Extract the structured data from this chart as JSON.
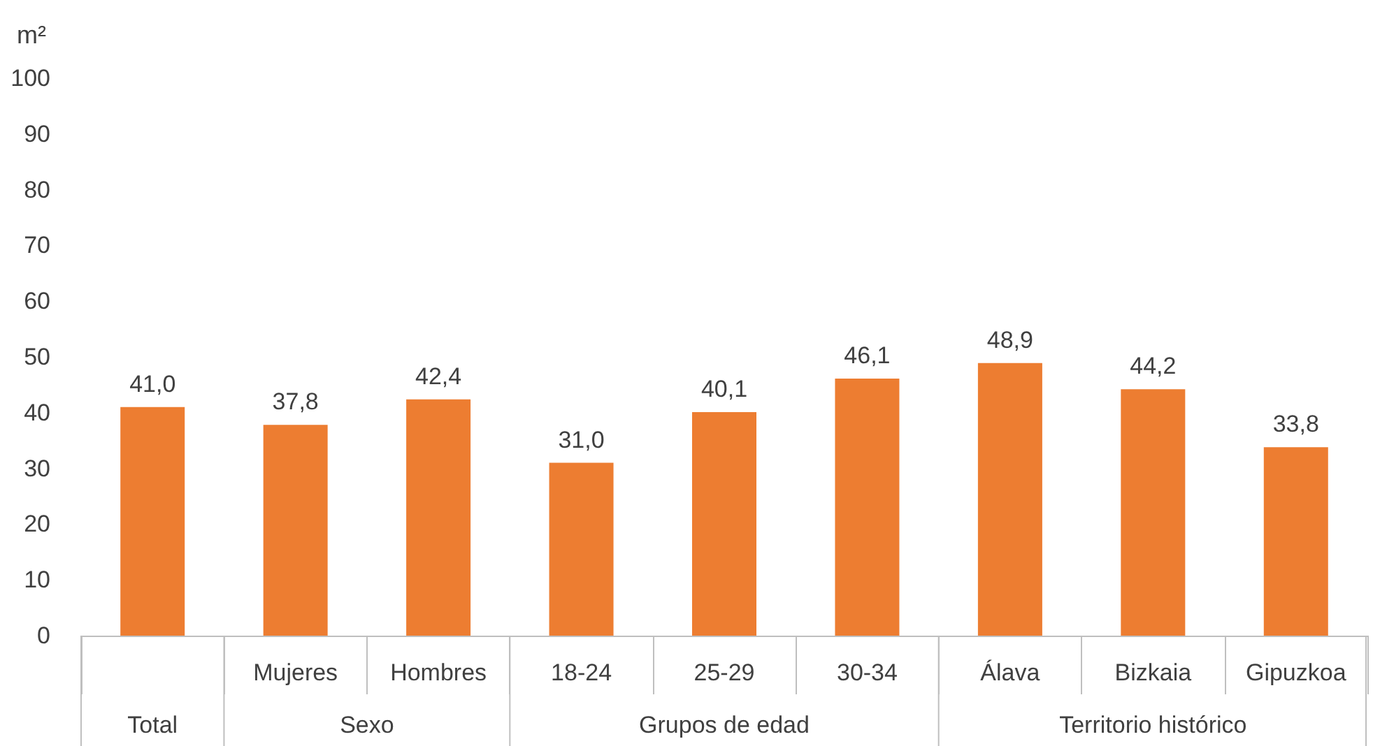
{
  "chart_data": {
    "type": "bar",
    "ylabel": "m²",
    "categories": [
      null,
      "Mujeres",
      "Hombres",
      "18-24",
      "25-29",
      "30-34",
      "Álava",
      "Bizkaia",
      "Gipuzkoa"
    ],
    "values": [
      41.0,
      37.8,
      42.4,
      31.0,
      40.1,
      46.1,
      48.9,
      44.2,
      33.8
    ],
    "value_labels": [
      "41,0",
      "37,8",
      "42,4",
      "31,0",
      "40,1",
      "46,1",
      "48,9",
      "44,2",
      "33,8"
    ],
    "color": "#ed7d31",
    "ylim": [
      0,
      100
    ],
    "yticks": [
      0,
      10,
      20,
      30,
      40,
      50,
      60,
      70,
      80,
      90,
      100
    ],
    "grid": false,
    "annotations": [
      "Total",
      "Sexo",
      "Grupos de edad",
      "Territorio histórico"
    ]
  }
}
